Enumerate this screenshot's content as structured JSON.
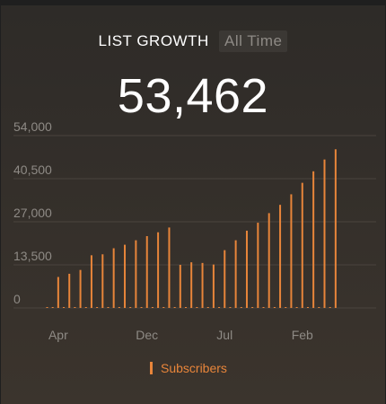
{
  "header": {
    "title": "LIST GROWTH",
    "range_label": "All Time",
    "total_value": "53,462"
  },
  "colors": {
    "bar": "#e8853a",
    "gridline": "#4a443e",
    "axis_text": "#8e8a85"
  },
  "chart_data": {
    "type": "bar",
    "title": "LIST GROWTH",
    "xlabel": "",
    "ylabel": "",
    "ylim": [
      0,
      54000
    ],
    "yticks": [
      0,
      13500,
      27000,
      40500,
      54000
    ],
    "ytick_labels": [
      "0",
      "13,500",
      "27,000",
      "40,500",
      "54,000"
    ],
    "xtick_labels": [
      {
        "label": "Apr",
        "index": 2
      },
      {
        "label": "Dec",
        "index": 18
      },
      {
        "label": "Jul",
        "index": 32
      },
      {
        "label": "Feb",
        "index": 46
      }
    ],
    "grid": true,
    "legend": "bottom",
    "series": [
      {
        "name": "Subscribers",
        "values": [
          200,
          200,
          9700,
          200,
          10700,
          200,
          11900,
          200,
          16500,
          200,
          16800,
          200,
          18700,
          200,
          19800,
          200,
          21200,
          200,
          22500,
          200,
          23700,
          200,
          25200,
          200,
          13500,
          200,
          14300,
          200,
          14100,
          200,
          13600,
          200,
          18100,
          200,
          21200,
          200,
          24200,
          200,
          26700,
          200,
          29700,
          200,
          32300,
          200,
          35600,
          200,
          39200,
          200,
          42800,
          200,
          46500,
          200,
          49700
        ]
      }
    ]
  }
}
